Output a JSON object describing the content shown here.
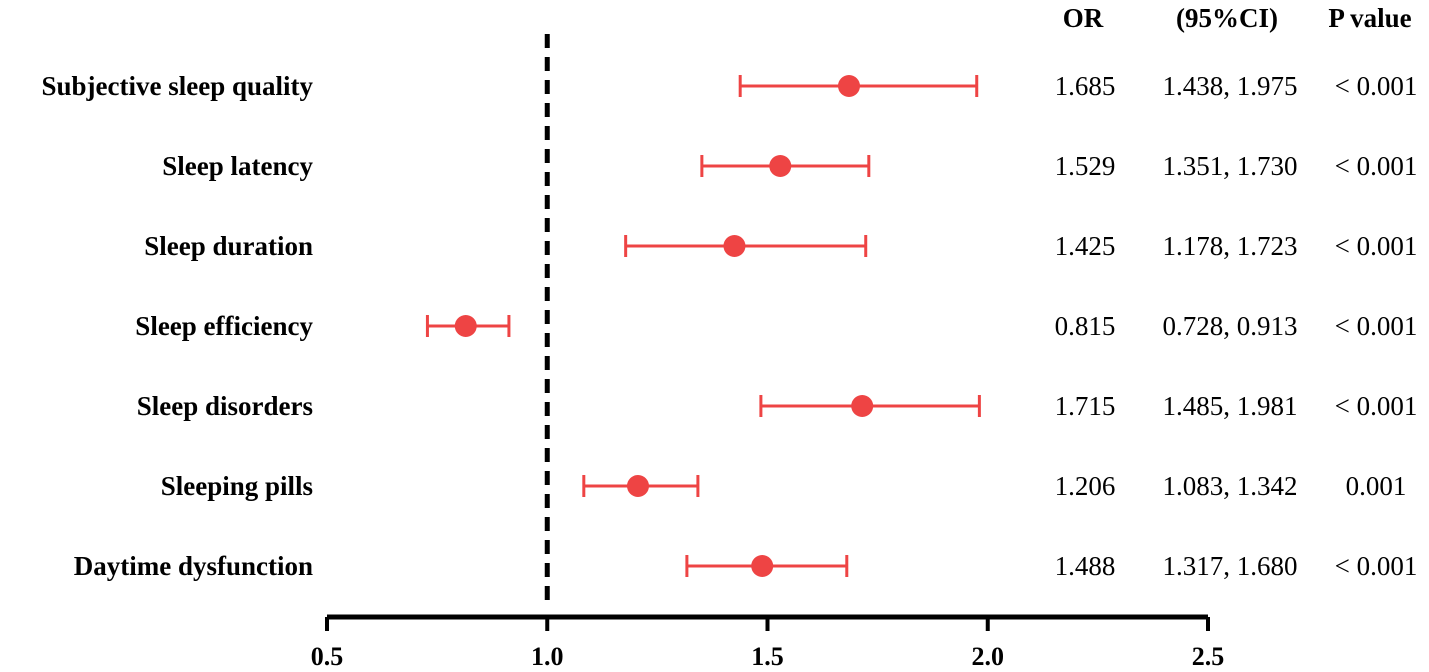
{
  "chart_data": {
    "type": "forest",
    "columns": {
      "or": "OR",
      "ci": "(95%CI)",
      "p": "P value"
    },
    "x_ticks": [
      "0.5",
      "1.0",
      "1.5",
      "2.0",
      "2.5"
    ],
    "xlim": [
      0.5,
      2.5
    ],
    "reference_line": 1.0,
    "marker_color": "#ee4444",
    "rows": [
      {
        "label": "Subjective sleep quality",
        "or": 1.685,
        "lower": 1.438,
        "upper": 1.975,
        "or_text": "1.685",
        "ci_text": "1.438, 1.975",
        "p_text": "< 0.001"
      },
      {
        "label": "Sleep latency",
        "or": 1.529,
        "lower": 1.351,
        "upper": 1.73,
        "or_text": "1.529",
        "ci_text": "1.351, 1.730",
        "p_text": "< 0.001"
      },
      {
        "label": "Sleep duration",
        "or": 1.425,
        "lower": 1.178,
        "upper": 1.723,
        "or_text": "1.425",
        "ci_text": "1.178, 1.723",
        "p_text": "< 0.001"
      },
      {
        "label": "Sleep efficiency",
        "or": 0.815,
        "lower": 0.728,
        "upper": 0.913,
        "or_text": "0.815",
        "ci_text": "0.728, 0.913",
        "p_text": "< 0.001"
      },
      {
        "label": "Sleep disorders",
        "or": 1.715,
        "lower": 1.485,
        "upper": 1.981,
        "or_text": "1.715",
        "ci_text": "1.485, 1.981",
        "p_text": "< 0.001"
      },
      {
        "label": "Sleeping pills",
        "or": 1.206,
        "lower": 1.083,
        "upper": 1.342,
        "or_text": "1.206",
        "ci_text": "1.083, 1.342",
        "p_text": "0.001"
      },
      {
        "label": "Daytime dysfunction",
        "or": 1.488,
        "lower": 1.317,
        "upper": 1.68,
        "or_text": "1.488",
        "ci_text": "1.317, 1.680",
        "p_text": "< 0.001"
      }
    ]
  }
}
